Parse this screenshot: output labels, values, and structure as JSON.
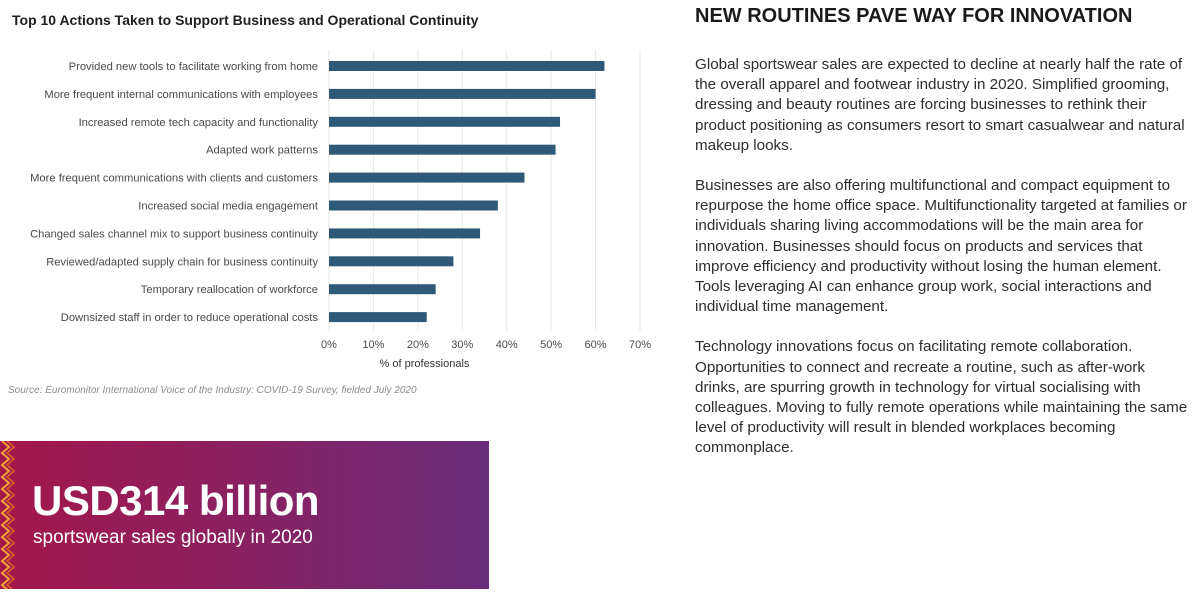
{
  "chart_data": {
    "type": "bar",
    "orientation": "horizontal",
    "title": "Top 10 Actions Taken to Support Business and Operational Continuity",
    "categories": [
      "Provided new tools to facilitate working from home",
      "More frequent internal communications with employees",
      "Increased remote tech capacity and functionality",
      "Adapted work patterns",
      "More frequent communications with clients and customers",
      "Increased social media engagement",
      "Changed sales channel mix to support business continuity",
      "Reviewed/adapted supply chain for business continuity",
      "Temporary reallocation of workforce",
      "Downsized staff in order to reduce operational costs"
    ],
    "values": [
      62,
      60,
      52,
      51,
      44,
      38,
      34,
      28,
      24,
      22
    ],
    "xlabel": "% of professionals",
    "xlim": [
      0,
      70
    ],
    "xticks": [
      "0%",
      "10%",
      "20%",
      "30%",
      "40%",
      "50%",
      "60%",
      "70%"
    ],
    "grid": true,
    "bar_color": "#2e5a77",
    "source": "Source: Euromonitor International Voice of the Industry: COVID-19 Survey, fielded July 2020"
  },
  "article": {
    "headline": "NEW ROUTINES PAVE WAY FOR INNOVATION",
    "paragraphs": [
      "Global sportswear sales are expected to decline at nearly half the rate of the overall apparel and footwear industry in 2020. Simplified grooming, dressing and beauty routines are forcing businesses to rethink their product positioning as consumers resort to smart casualwear and natural makeup looks.",
      "Businesses are also offering multifunctional and compact equipment to repurpose the home office space. Multifunctionality targeted at families or individuals sharing living accommodations will be the main area for innovation. Businesses should focus on products and services that improve efficiency and productivity without losing the human element. Tools leveraging AI can enhance group work, social interactions and individual time management.",
      "Technology innovations focus on facilitating remote collaboration. Opportunities to connect and recreate a routine, such as after-work drinks, are spurring growth in technology for virtual socialising with colleagues. Moving to fully remote operations while maintaining the same level of productivity will result in blended workplaces becoming commonplace."
    ]
  },
  "highlight": {
    "value": "USD314 billion",
    "label": "sportswear sales globally in 2020"
  },
  "colors": {
    "bar": "#2e5a77",
    "highlight_start": "#a3174a",
    "highlight_end": "#6a2d7c"
  }
}
